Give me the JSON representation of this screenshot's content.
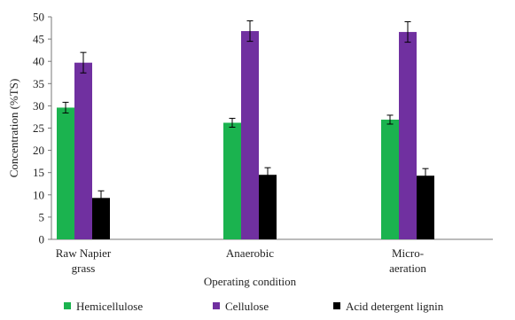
{
  "chart_data": {
    "type": "bar",
    "categories": [
      [
        "Raw Napier",
        "grass"
      ],
      [
        "Anaerobic"
      ],
      [
        "Micro-",
        "aeration"
      ]
    ],
    "series": [
      {
        "name": "Hemicellulose",
        "color": "#1bb34f",
        "values": [
          29.6,
          26.2,
          26.9
        ],
        "errors": [
          1.2,
          1.0,
          1.0
        ]
      },
      {
        "name": "Cellulose",
        "color": "#7030a0",
        "values": [
          39.7,
          46.8,
          46.6
        ],
        "errors": [
          2.3,
          2.3,
          2.3
        ]
      },
      {
        "name": "Acid detergent lignin",
        "color": "#000000",
        "values": [
          9.3,
          14.5,
          14.3
        ],
        "errors": [
          1.6,
          1.6,
          1.6
        ]
      }
    ],
    "xlabel": "Operating condition",
    "ylabel": "Concentration (%TS)",
    "ylim": [
      0,
      50
    ],
    "yticks": [
      0,
      5,
      10,
      15,
      20,
      25,
      30,
      35,
      40,
      45,
      50
    ],
    "grid": false,
    "legend_position": "bottom"
  }
}
